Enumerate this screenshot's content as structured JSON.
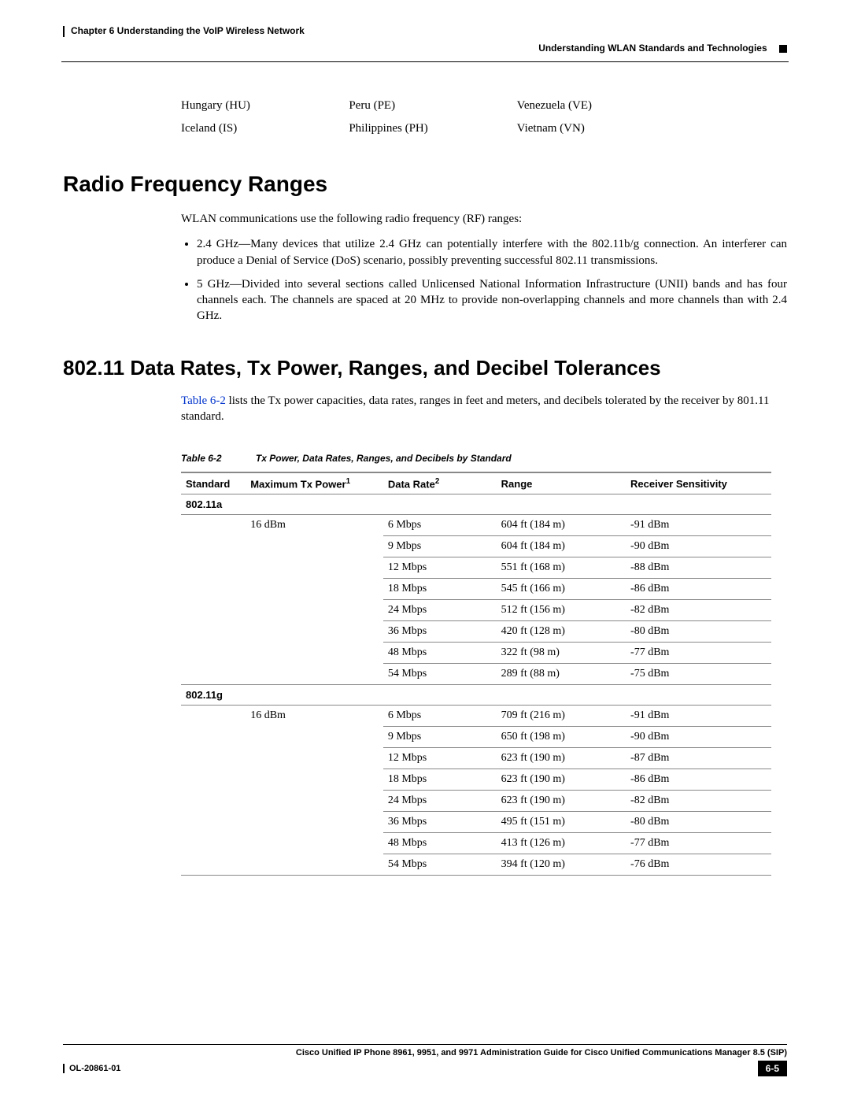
{
  "header": {
    "chapter": "Chapter 6    Understanding the VoIP Wireless Network",
    "section": "Understanding WLAN Standards and Technologies"
  },
  "countries": {
    "rows": [
      [
        "Hungary (HU)",
        "Peru (PE)",
        "Venezuela (VE)"
      ],
      [
        "Iceland (IS)",
        "Philippines (PH)",
        "Vietnam (VN)"
      ]
    ]
  },
  "sec1": {
    "title": "Radio Frequency Ranges",
    "intro": "WLAN communications use the following radio frequency (RF) ranges:",
    "bullets": [
      "2.4 GHz—Many devices that utilize 2.4 GHz can potentially interfere with the 802.11b/g connection. An interferer can produce a Denial of Service (DoS) scenario, possibly preventing successful 802.11 transmissions.",
      "5 GHz—Divided into several sections called Unlicensed National Information Infrastructure (UNII) bands and has four channels each. The channels are spaced at 20 MHz to provide non-overlapping channels and more channels than with 2.4 GHz."
    ]
  },
  "sec2": {
    "title": "802.11 Data Rates, Tx Power, Ranges, and Decibel Tolerances",
    "ref": "Table 6-2",
    "intro_after": " lists the Tx power capacities, data rates, ranges in feet and meters, and decibels tolerated by the receiver by 801.11 standard."
  },
  "table": {
    "caption_num": "Table 6-2",
    "caption_text": "Tx Power, Data Rates, Ranges, and Decibels by Standard",
    "headers": {
      "std": "Standard",
      "pow": "Maximum Tx Power",
      "rate": "Data Rate",
      "range": "Range",
      "sens": "Receiver Sensitivity"
    },
    "group1": "802.11a",
    "group1_pow": "16 dBm",
    "group1_rows": [
      {
        "rate": "6 Mbps",
        "range": "604 ft (184 m)",
        "sens": "-91 dBm"
      },
      {
        "rate": "9 Mbps",
        "range": "604 ft (184 m)",
        "sens": "-90 dBm"
      },
      {
        "rate": "12 Mbps",
        "range": "551 ft (168 m)",
        "sens": "-88 dBm"
      },
      {
        "rate": "18 Mbps",
        "range": "545 ft (166 m)",
        "sens": "-86 dBm"
      },
      {
        "rate": "24 Mbps",
        "range": "512 ft (156 m)",
        "sens": "-82 dBm"
      },
      {
        "rate": "36 Mbps",
        "range": "420 ft (128 m)",
        "sens": "-80 dBm"
      },
      {
        "rate": "48 Mbps",
        "range": "322 ft (98 m)",
        "sens": "-77 dBm"
      },
      {
        "rate": "54 Mbps",
        "range": "289 ft (88 m)",
        "sens": "-75 dBm"
      }
    ],
    "group2": "802.11g",
    "group2_pow": "16 dBm",
    "group2_rows": [
      {
        "rate": "6 Mbps",
        "range": "709 ft (216 m)",
        "sens": "-91 dBm"
      },
      {
        "rate": "9 Mbps",
        "range": "650 ft (198 m)",
        "sens": "-90 dBm"
      },
      {
        "rate": "12 Mbps",
        "range": "623 ft (190 m)",
        "sens": "-87 dBm"
      },
      {
        "rate": "18 Mbps",
        "range": "623 ft (190 m)",
        "sens": "-86 dBm"
      },
      {
        "rate": "24 Mbps",
        "range": "623 ft (190 m)",
        "sens": "-82 dBm"
      },
      {
        "rate": "36 Mbps",
        "range": "495 ft (151 m)",
        "sens": "-80 dBm"
      },
      {
        "rate": "48 Mbps",
        "range": "413 ft (126 m)",
        "sens": "-77 dBm"
      },
      {
        "rate": "54 Mbps",
        "range": "394 ft (120 m)",
        "sens": "-76 dBm"
      }
    ]
  },
  "footer": {
    "title": "Cisco Unified IP Phone 8961, 9951, and 9971 Administration Guide for Cisco Unified Communications Manager 8.5 (SIP)",
    "doc": "OL-20861-01",
    "page": "6-5"
  },
  "colors": {
    "text": "#000000",
    "link": "#0033cc",
    "border": "#888888",
    "bg": "#ffffff"
  }
}
